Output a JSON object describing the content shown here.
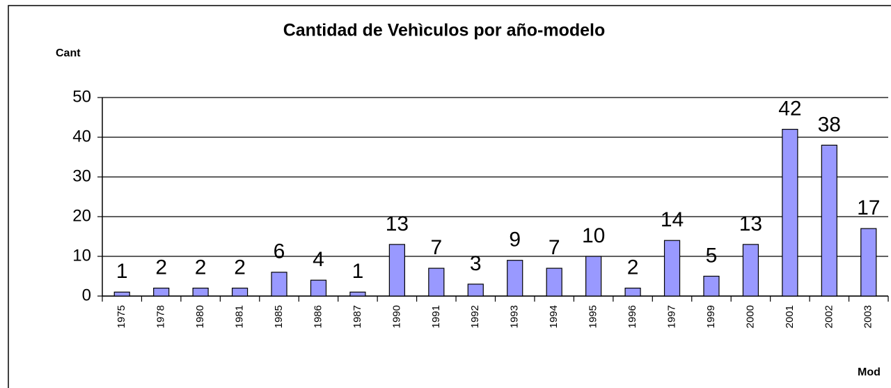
{
  "chart_data": {
    "type": "bar",
    "title": "Cantidad de Vehìculos por año-modelo",
    "y_label": "Cant",
    "x_label": "Mod",
    "categories": [
      "1975",
      "1978",
      "1980",
      "1981",
      "1985",
      "1986",
      "1987",
      "1990",
      "1991",
      "1992",
      "1993",
      "1994",
      "1995",
      "1996",
      "1997",
      "1999",
      "2000",
      "2001",
      "2002",
      "2003"
    ],
    "values": [
      1,
      2,
      2,
      2,
      6,
      4,
      1,
      13,
      7,
      3,
      9,
      7,
      10,
      2,
      14,
      5,
      13,
      42,
      38,
      17
    ],
    "color": "#9999ff",
    "ylim": [
      0,
      50
    ],
    "yticks": [
      0,
      10,
      20,
      30,
      40,
      50
    ],
    "grid": true
  }
}
